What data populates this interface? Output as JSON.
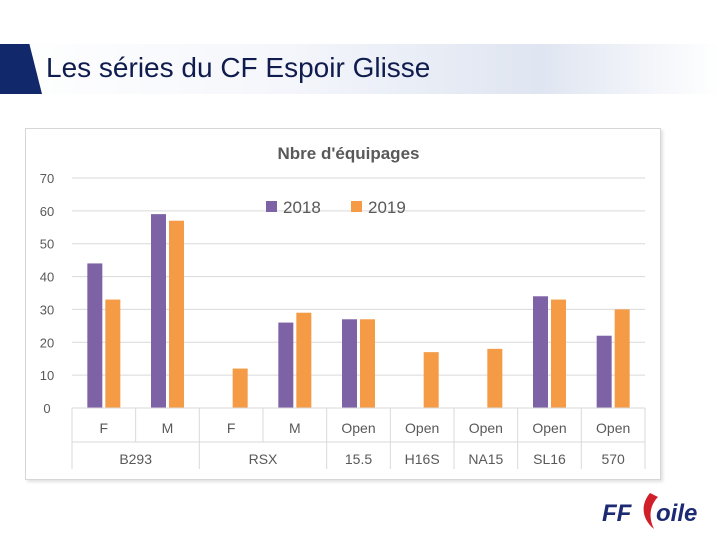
{
  "slide": {
    "title": "Les séries du CF Espoir Glisse"
  },
  "logo": {
    "text_ff": "FF",
    "text_voile": "Voile",
    "colors": {
      "ff": "#1b2a72",
      "sail": "#d11f2a"
    }
  },
  "chart_data": {
    "type": "bar",
    "title": "Nbre d'équipages",
    "xlabel": "",
    "ylabel": "",
    "ylim": [
      0,
      70
    ],
    "yticks": [
      0,
      10,
      20,
      30,
      40,
      50,
      60,
      70
    ],
    "legend_position": "top-center",
    "grid": true,
    "categories": [
      {
        "label": "F",
        "group": "B293"
      },
      {
        "label": "M",
        "group": "B293"
      },
      {
        "label": "F",
        "group": "RSX"
      },
      {
        "label": "M",
        "group": "RSX"
      },
      {
        "label": "Open",
        "group": "15.5"
      },
      {
        "label": "Open",
        "group": "H16S"
      },
      {
        "label": "Open",
        "group": "NA15"
      },
      {
        "label": "Open",
        "group": "SL16"
      },
      {
        "label": "Open",
        "group": "570"
      }
    ],
    "groups": [
      {
        "name": "B293",
        "span": 2
      },
      {
        "name": "RSX",
        "span": 2
      },
      {
        "name": "15.5",
        "span": 1
      },
      {
        "name": "H16S",
        "span": 1
      },
      {
        "name": "NA15",
        "span": 1
      },
      {
        "name": "SL16",
        "span": 1
      },
      {
        "name": "570",
        "span": 1
      }
    ],
    "series": [
      {
        "name": "2018",
        "color": "#7e62a6",
        "values": [
          44,
          59,
          null,
          26,
          27,
          null,
          null,
          34,
          22
        ]
      },
      {
        "name": "2019",
        "color": "#f59a45",
        "values": [
          33,
          57,
          12,
          29,
          27,
          17,
          18,
          33,
          30
        ]
      }
    ]
  }
}
